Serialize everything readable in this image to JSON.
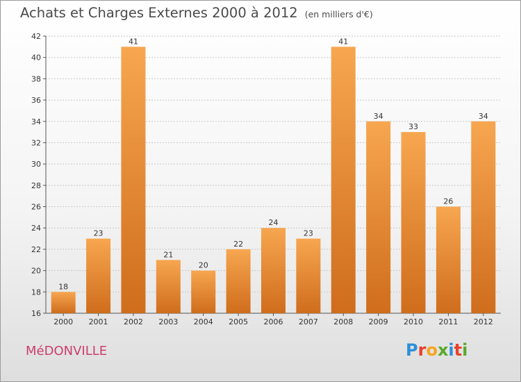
{
  "title": "Achats et Charges Externes 2000 à 2012",
  "unit": "(en milliers d'€)",
  "commune": "MéDONVILLE",
  "logo": {
    "letters": [
      "P",
      "r",
      "o",
      "x",
      "i",
      "t",
      "i"
    ],
    "colors": [
      "#2d8fd8",
      "#e8402a",
      "#f7a51f",
      "#5aa82a",
      "#2d8fd8",
      "#e8402a",
      "#5aa82a"
    ]
  },
  "chart_data": {
    "type": "bar",
    "title": "Achats et Charges Externes 2000 à 2012",
    "subtitle": "(en milliers d'€)",
    "categories": [
      "2000",
      "2001",
      "2002",
      "2003",
      "2004",
      "2005",
      "2006",
      "2007",
      "2008",
      "2009",
      "2010",
      "2011",
      "2012"
    ],
    "values": [
      18,
      23,
      41,
      21,
      20,
      22,
      24,
      23,
      41,
      34,
      33,
      26,
      34
    ],
    "xlabel": "",
    "ylabel": "",
    "ylim": [
      16,
      42
    ],
    "yticks": [
      16,
      18,
      20,
      22,
      24,
      26,
      28,
      30,
      32,
      34,
      36,
      38,
      40,
      42
    ],
    "grid": "horizontal dashed",
    "bar_color_light": "#f7a650",
    "bar_color_dark": "#cf6d1c"
  }
}
